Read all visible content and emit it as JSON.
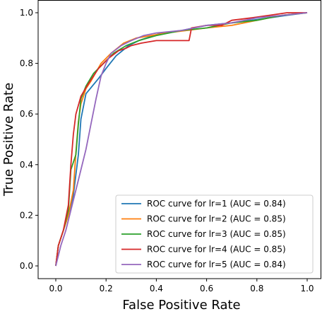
{
  "chart_data": {
    "type": "line",
    "title": "",
    "xlabel": "False Positive Rate",
    "ylabel": "True Positive Rate",
    "xlim": [
      0.0,
      1.0
    ],
    "ylim": [
      0.0,
      1.0
    ],
    "x_ticks": [
      "0.0",
      "0.2",
      "0.4",
      "0.6",
      "0.8",
      "1.0"
    ],
    "y_ticks": [
      "0.0",
      "0.2",
      "0.4",
      "0.6",
      "0.8",
      "1.0"
    ],
    "grid": false,
    "legend_position": "lower-right",
    "series": [
      {
        "name": "ROC curve for lr=1 (AUC = 0.84)",
        "color": "#1f77b4",
        "x": [
          0.0,
          0.01,
          0.03,
          0.05,
          0.07,
          0.09,
          0.1,
          0.12,
          0.17,
          0.2,
          0.24,
          0.29,
          0.33,
          0.42,
          0.5,
          0.6,
          0.7,
          0.78,
          0.85,
          0.92,
          1.0
        ],
        "y": [
          0.0,
          0.08,
          0.14,
          0.2,
          0.28,
          0.44,
          0.58,
          0.68,
          0.74,
          0.78,
          0.83,
          0.87,
          0.89,
          0.92,
          0.93,
          0.95,
          0.96,
          0.97,
          0.98,
          0.99,
          1.0
        ]
      },
      {
        "name": "ROC curve for lr=2 (AUC = 0.85)",
        "color": "#ff7f0e",
        "x": [
          0.0,
          0.01,
          0.03,
          0.05,
          0.07,
          0.08,
          0.09,
          0.1,
          0.12,
          0.14,
          0.18,
          0.22,
          0.27,
          0.32,
          0.38,
          0.44,
          0.52,
          0.6,
          0.7,
          0.8,
          0.9,
          1.0
        ],
        "y": [
          0.0,
          0.08,
          0.14,
          0.2,
          0.3,
          0.45,
          0.57,
          0.64,
          0.7,
          0.73,
          0.8,
          0.84,
          0.88,
          0.9,
          0.91,
          0.92,
          0.93,
          0.94,
          0.95,
          0.97,
          0.99,
          1.0
        ]
      },
      {
        "name": "ROC curve for lr=3 (AUC = 0.85)",
        "color": "#2ca02c",
        "x": [
          0.0,
          0.01,
          0.03,
          0.05,
          0.06,
          0.08,
          0.09,
          0.1,
          0.12,
          0.15,
          0.19,
          0.23,
          0.28,
          0.33,
          0.4,
          0.5,
          0.6,
          0.7,
          0.8,
          0.9,
          1.0
        ],
        "y": [
          0.0,
          0.08,
          0.14,
          0.22,
          0.38,
          0.44,
          0.56,
          0.66,
          0.71,
          0.76,
          0.8,
          0.84,
          0.87,
          0.89,
          0.91,
          0.93,
          0.94,
          0.96,
          0.97,
          0.99,
          1.0
        ]
      },
      {
        "name": "ROC curve for lr=4 (AUC = 0.85)",
        "color": "#d62728",
        "x": [
          0.0,
          0.01,
          0.03,
          0.05,
          0.06,
          0.07,
          0.08,
          0.1,
          0.13,
          0.17,
          0.21,
          0.25,
          0.28,
          0.3,
          0.34,
          0.4,
          0.5,
          0.53,
          0.54,
          0.6,
          0.66,
          0.7,
          0.78,
          0.85,
          0.92,
          1.0
        ],
        "y": [
          0.0,
          0.08,
          0.14,
          0.24,
          0.4,
          0.52,
          0.6,
          0.67,
          0.72,
          0.78,
          0.82,
          0.85,
          0.86,
          0.87,
          0.88,
          0.89,
          0.89,
          0.89,
          0.94,
          0.95,
          0.95,
          0.97,
          0.98,
          0.99,
          1.0,
          1.0
        ]
      },
      {
        "name": "ROC curve for lr=5 (AUC = 0.84)",
        "color": "#9467bd",
        "x": [
          0.0,
          0.02,
          0.04,
          0.06,
          0.08,
          0.1,
          0.12,
          0.14,
          0.16,
          0.18,
          0.2,
          0.22,
          0.26,
          0.3,
          0.35,
          0.4,
          0.5,
          0.6,
          0.7,
          0.8,
          0.9,
          1.0
        ],
        "y": [
          0.0,
          0.08,
          0.14,
          0.22,
          0.3,
          0.38,
          0.46,
          0.56,
          0.66,
          0.75,
          0.8,
          0.84,
          0.87,
          0.89,
          0.91,
          0.92,
          0.93,
          0.95,
          0.96,
          0.98,
          0.99,
          1.0
        ]
      }
    ]
  }
}
